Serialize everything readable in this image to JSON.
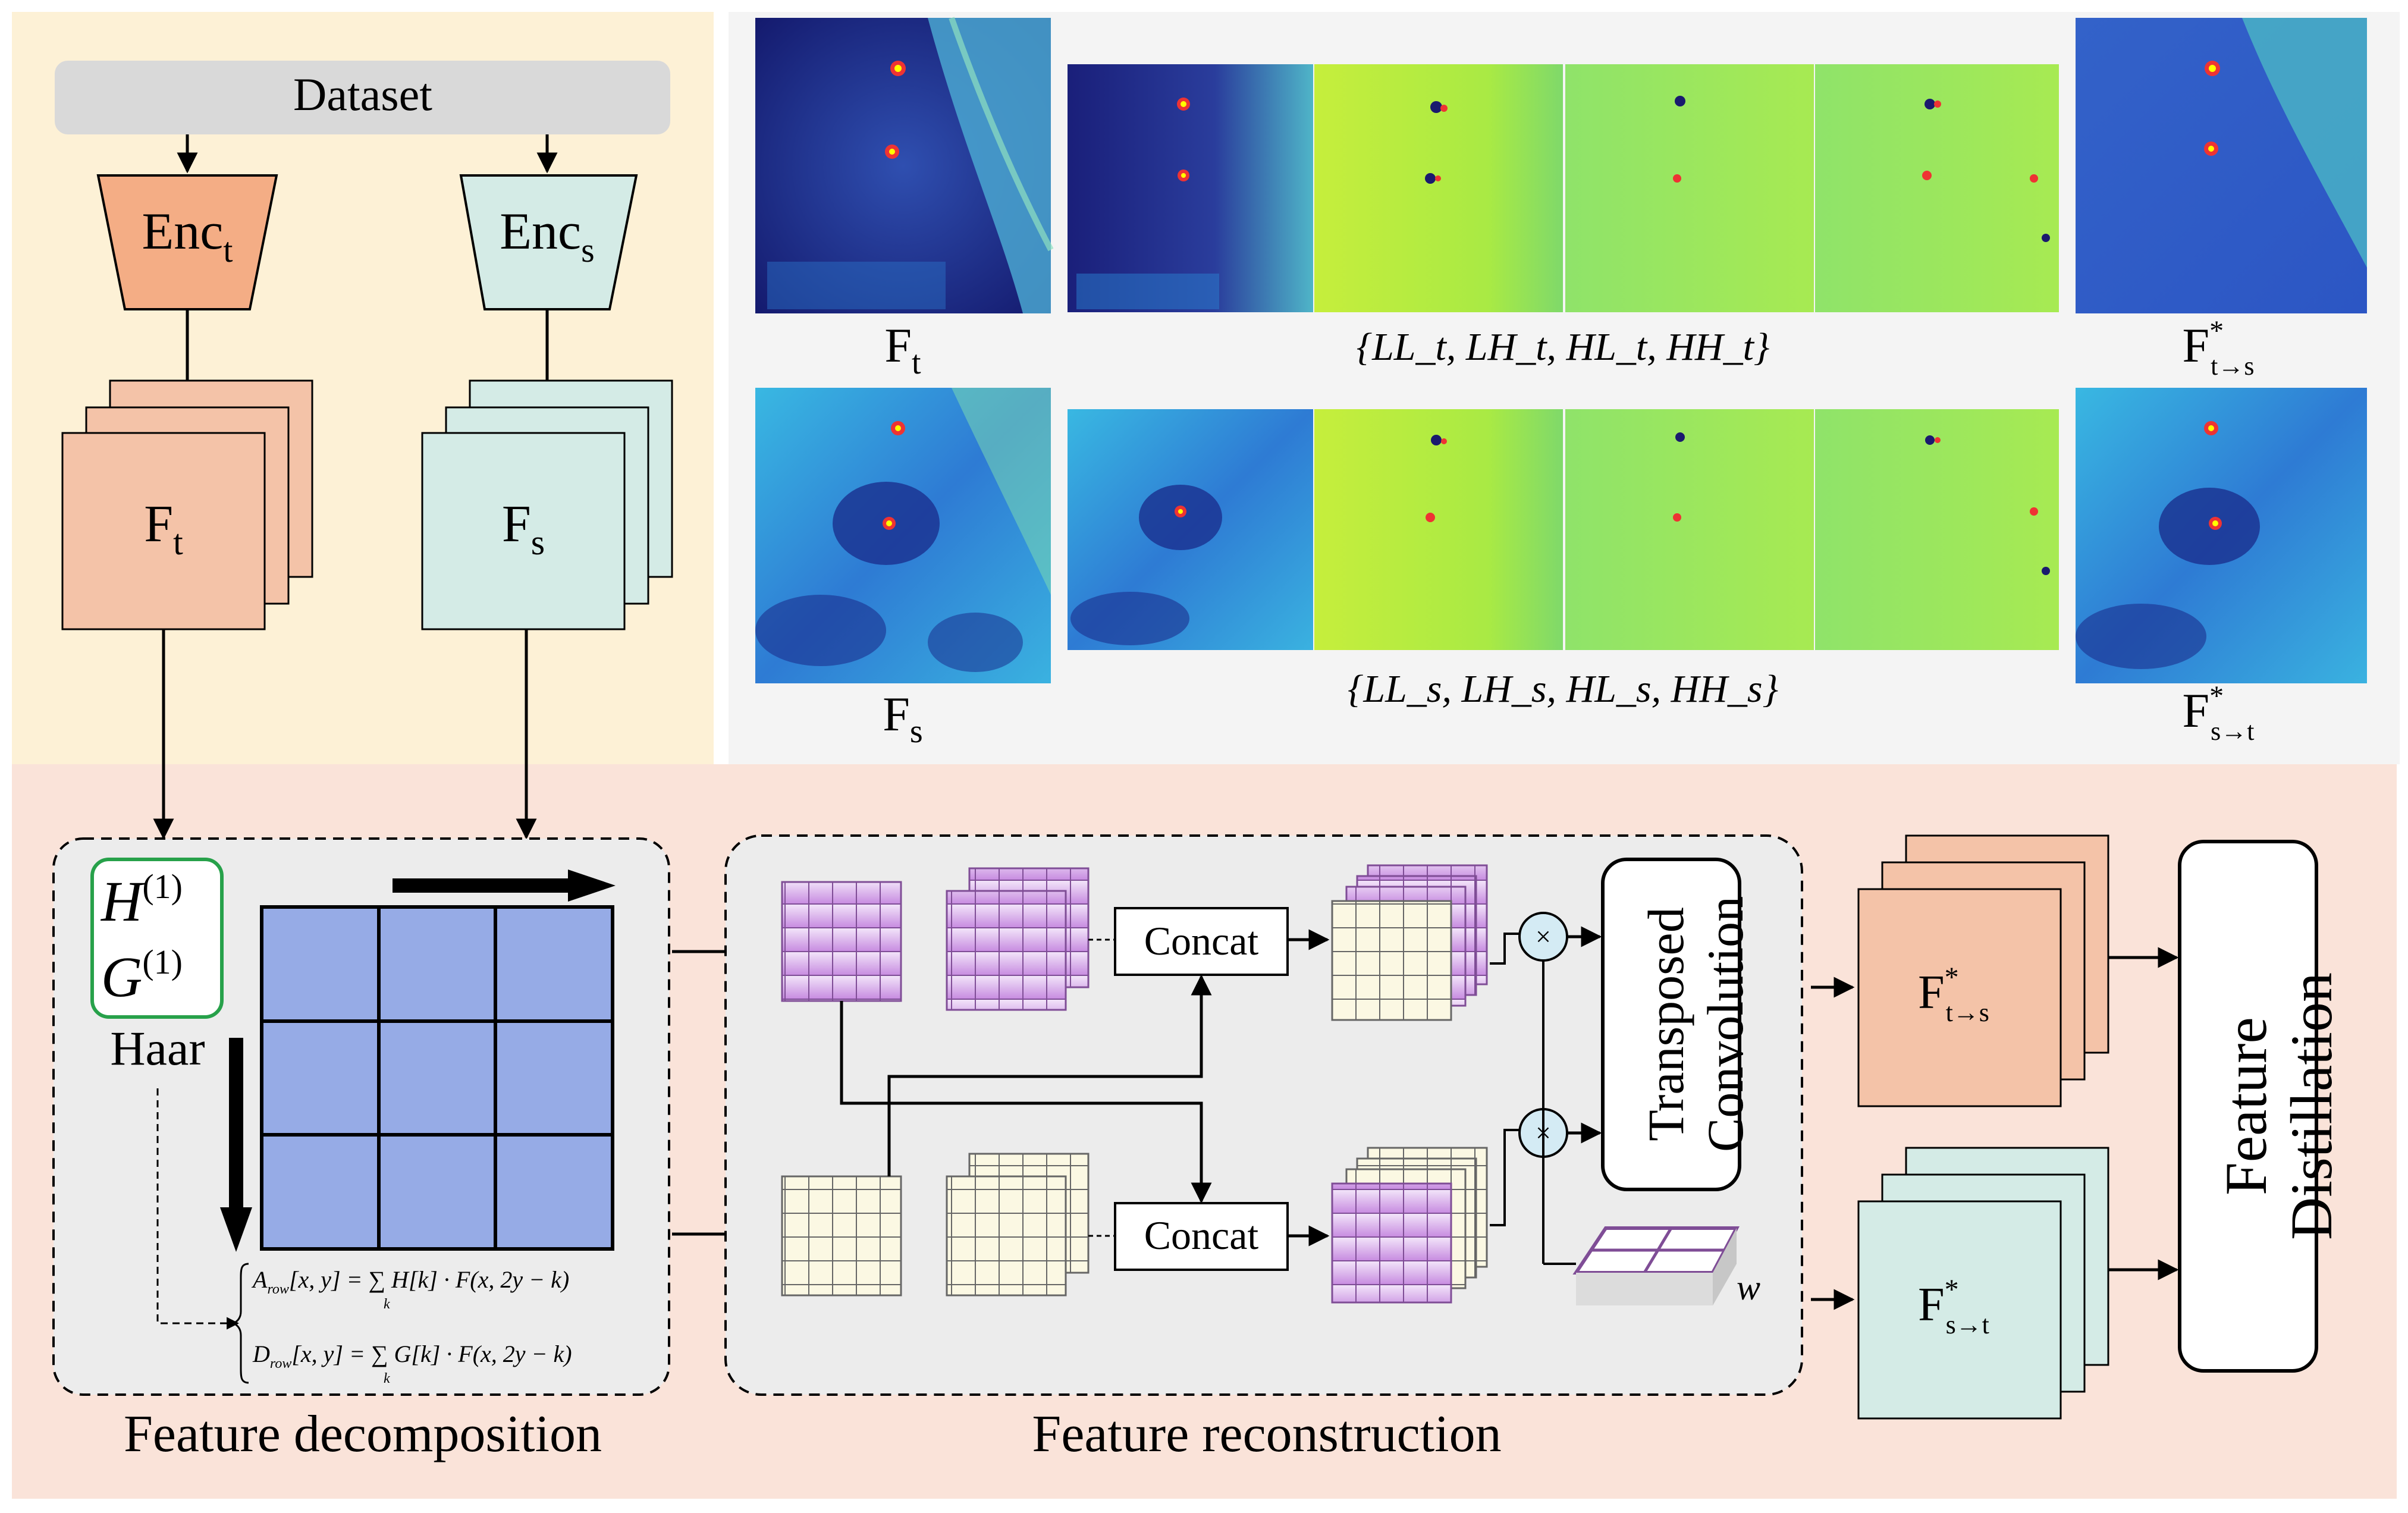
{
  "colors": {
    "top_left_bg": "#fdf1d6",
    "bottom_bg": "#fae3d9",
    "top_right_bg": "#f4f4f4",
    "teacher_fill": "#f4c3a8",
    "student_fill": "#d4ebe6",
    "dataset_fill": "#d9d9d9",
    "haar_grid": "#96abe6",
    "green_border": "#27a14a",
    "purple": "#c78be0",
    "cream": "#fbf8e3"
  },
  "encoder": {
    "dataset_label": "Dataset",
    "teacher": {
      "label": "Enc",
      "sub": "t"
    },
    "student": {
      "label": "Enc",
      "sub": "s"
    }
  },
  "features": {
    "teacher": {
      "label": "F",
      "sub": "t"
    },
    "student": {
      "label": "F",
      "sub": "s"
    }
  },
  "heatmaps": {
    "row1_left": {
      "label": "F",
      "sub": "t"
    },
    "row1_set": "{LL_t, LH_t, HL_t, HH_t}",
    "row1_right": {
      "label": "F",
      "sup": "*",
      "sub": "t→s"
    },
    "row2_left": {
      "label": "F",
      "sub": "s"
    },
    "row2_set": "{LL_s, LH_s, HL_s, HH_s}",
    "row2_right": {
      "label": "F",
      "sup": "*",
      "sub": "s→t"
    }
  },
  "decomposition": {
    "filter_h": "H",
    "filter_g": "G",
    "filter_sup": "(1)",
    "haar_label": "Haar",
    "eq1_lhs": "A",
    "eq1_lhs_sub": "row",
    "eq1_rhs": "[x, y] = ∑ H[k] · F(x, 2y − k)",
    "eq2_lhs": "D",
    "eq2_lhs_sub": "row",
    "eq2_rhs": "[x, y] = ∑ G[k] · F(x, 2y − k)",
    "sum_index": "k",
    "section_title": "Feature decomposition"
  },
  "reconstruction": {
    "concat_top": "Concat",
    "concat_bottom": "Concat",
    "transposed_line1": "Transposed",
    "transposed_line2": "Convolution",
    "multiply": "×",
    "weight": "w",
    "section_title": "Feature reconstruction"
  },
  "outputs": {
    "top": {
      "label": "F",
      "sup": "*",
      "sub": "t→s"
    },
    "bottom": {
      "label": "F",
      "sup": "*",
      "sub": "s→t"
    },
    "distill_line1": "Feature",
    "distill_line2": "Distillation"
  }
}
